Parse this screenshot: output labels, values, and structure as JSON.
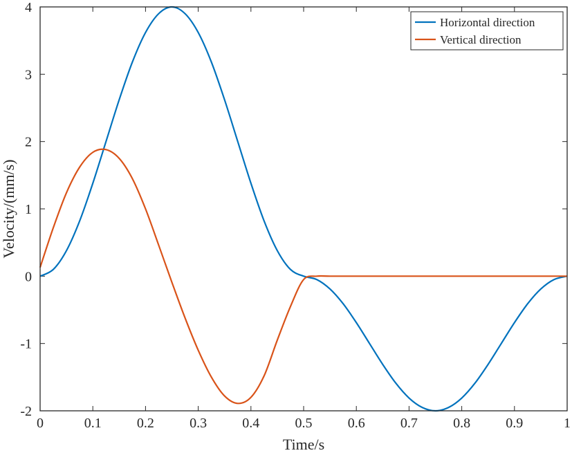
{
  "chart_data": {
    "type": "line",
    "xlabel": "Time/s",
    "ylabel": "Velocity/(mm/s)",
    "xlim": [
      0,
      1
    ],
    "ylim": [
      -2,
      4
    ],
    "x_ticks": [
      0,
      0.1,
      0.2,
      0.3,
      0.4,
      0.5,
      0.6,
      0.7,
      0.8,
      0.9,
      1
    ],
    "x_tick_labels": [
      "0",
      "0.1",
      "0.2",
      "0.3",
      "0.4",
      "0.5",
      "0.6",
      "0.7",
      "0.8",
      "0.9",
      "1"
    ],
    "y_ticks": [
      -2,
      -1,
      0,
      1,
      2,
      3,
      4
    ],
    "y_tick_labels": [
      "-2",
      "-1",
      "0",
      "1",
      "2",
      "3",
      "4"
    ],
    "grid": false,
    "legend_position": "top-right",
    "series": [
      {
        "name": "Horizontal direction",
        "color": "#0072BD",
        "x": [
          0,
          0.025,
          0.05,
          0.075,
          0.1,
          0.125,
          0.15,
          0.175,
          0.2,
          0.225,
          0.25,
          0.275,
          0.3,
          0.325,
          0.35,
          0.375,
          0.4,
          0.425,
          0.45,
          0.475,
          0.5,
          0.525,
          0.55,
          0.575,
          0.6,
          0.625,
          0.65,
          0.675,
          0.7,
          0.725,
          0.75,
          0.775,
          0.8,
          0.825,
          0.85,
          0.875,
          0.9,
          0.925,
          0.95,
          0.975,
          1
        ],
        "y": [
          0,
          0.1,
          0.38,
          0.82,
          1.38,
          2.0,
          2.62,
          3.18,
          3.62,
          3.9,
          4.0,
          3.9,
          3.62,
          3.18,
          2.62,
          2.0,
          1.38,
          0.82,
          0.38,
          0.1,
          0,
          -0.05,
          -0.19,
          -0.41,
          -0.69,
          -1.0,
          -1.31,
          -1.59,
          -1.81,
          -1.95,
          -2.0,
          -1.95,
          -1.81,
          -1.59,
          -1.31,
          -1.0,
          -0.69,
          -0.41,
          -0.19,
          -0.05,
          0
        ]
      },
      {
        "name": "Vertical direction",
        "color": "#D95319",
        "x": [
          0,
          0.025,
          0.05,
          0.075,
          0.1,
          0.125,
          0.15,
          0.175,
          0.2,
          0.225,
          0.25,
          0.275,
          0.3,
          0.325,
          0.35,
          0.375,
          0.4,
          0.425,
          0.45,
          0.475,
          0.5,
          0.525,
          0.55,
          0.6,
          0.65,
          0.7,
          0.75,
          0.8,
          0.85,
          0.9,
          0.95,
          1
        ],
        "y": [
          0.13,
          0.72,
          1.24,
          1.62,
          1.84,
          1.88,
          1.75,
          1.45,
          1.0,
          0.46,
          -0.09,
          -0.62,
          -1.1,
          -1.5,
          -1.78,
          -1.89,
          -1.8,
          -1.48,
          -0.95,
          -0.45,
          -0.05,
          0,
          0,
          0,
          0,
          0,
          0,
          0,
          0,
          0,
          0,
          0
        ]
      }
    ]
  }
}
